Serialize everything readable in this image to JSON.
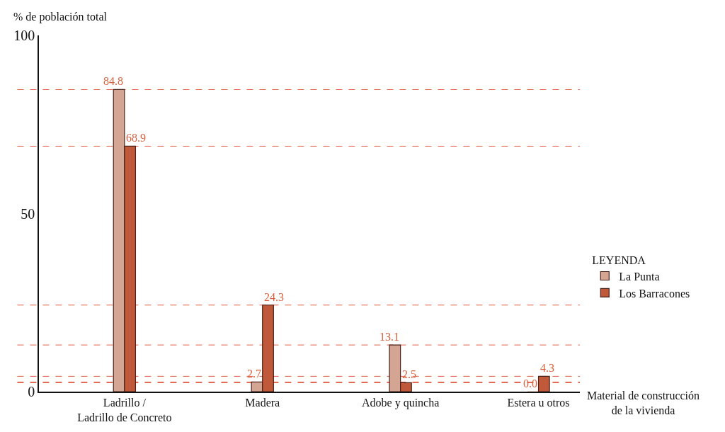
{
  "chart_data": {
    "type": "bar",
    "ylabel": "% de población total",
    "xlabel": "Material de construcción\nde la vivienda",
    "legend_title": "LEYENDA",
    "categories": [
      "Ladrillo /\nLadrillo de Concreto",
      "Madera",
      "Adobe y quincha",
      "Estera u otros"
    ],
    "series": [
      {
        "name": "La Punta",
        "color": "#d4a593",
        "values": [
          84.8,
          2.7,
          13.1,
          0.0
        ],
        "value_labels": [
          "84.8",
          "2.7",
          "13.1",
          "0.0"
        ]
      },
      {
        "name": "Los Barracones",
        "color": "#c0583a",
        "values": [
          68.9,
          24.3,
          2.5,
          4.3
        ],
        "value_labels": [
          "68.9",
          "24.3",
          "2.5",
          "4.3"
        ]
      }
    ],
    "ylim": [
      0,
      100
    ],
    "yticks": [
      0,
      50,
      100
    ],
    "grid": false,
    "legend": "right",
    "ref_lines": [
      {
        "axis": "y",
        "value": 84.8,
        "color": "#e0604a",
        "line_style": "dashed"
      },
      {
        "axis": "y",
        "value": 68.9,
        "color": "#e0604a",
        "line_style": "dashed"
      },
      {
        "axis": "y",
        "value": 24.3,
        "color": "#e0604a",
        "line_style": "dashed"
      },
      {
        "axis": "y",
        "value": 13.1,
        "color": "#e0604a",
        "line_style": "dashed"
      },
      {
        "axis": "y",
        "value": 4.3,
        "color": "#e0604a",
        "line_style": "dashed"
      },
      {
        "axis": "y",
        "value": 2.7,
        "color": "#e0604a",
        "line_style": "dashed"
      },
      {
        "axis": "y",
        "value": 2.5,
        "color": "#e0604a",
        "line_style": "dashed"
      }
    ]
  }
}
